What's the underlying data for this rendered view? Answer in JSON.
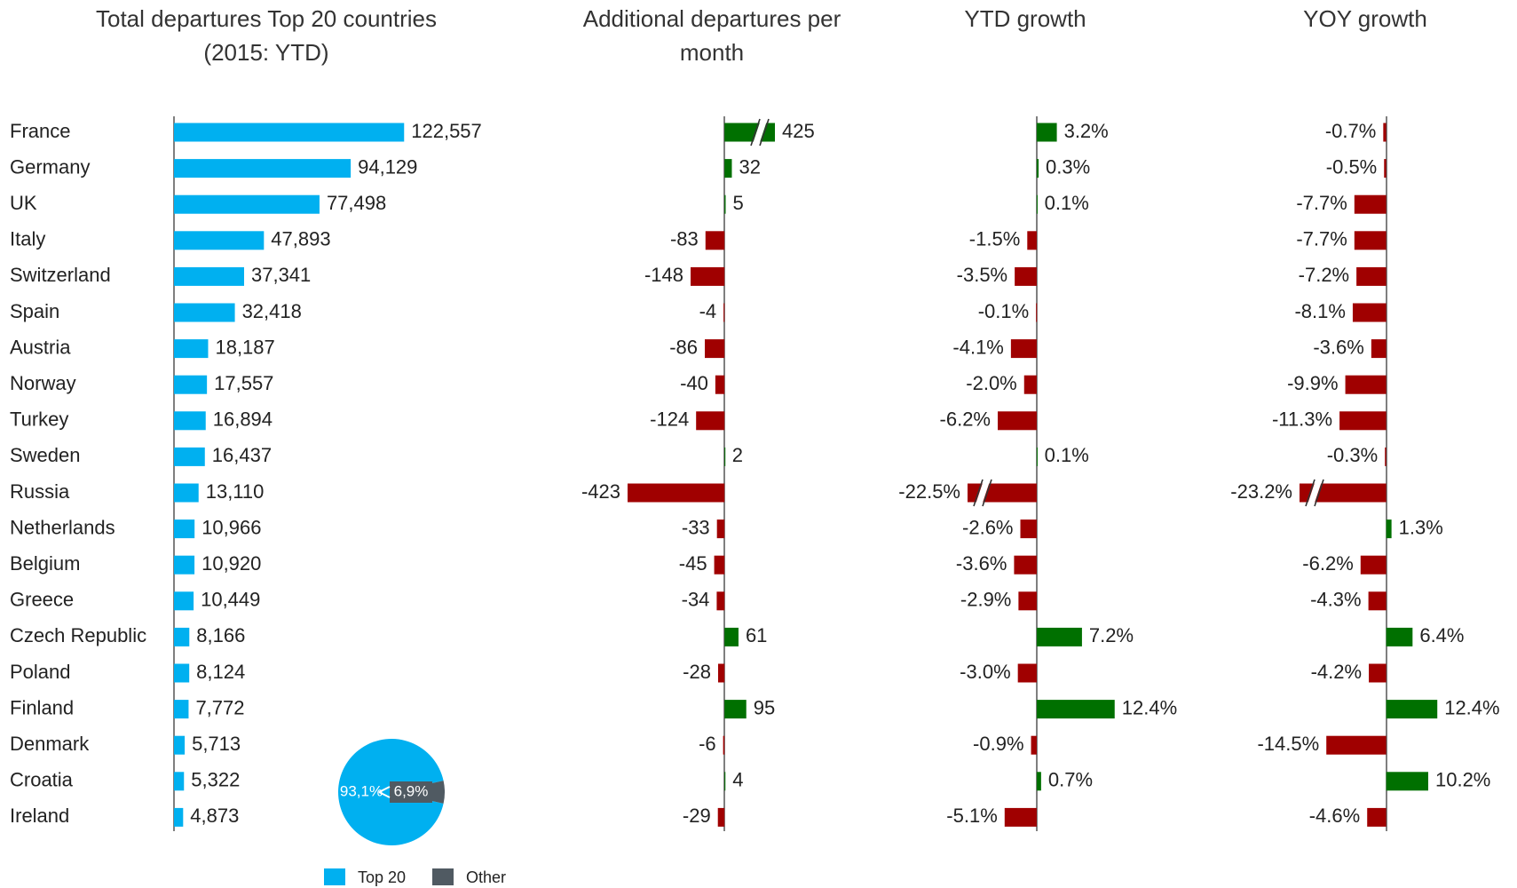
{
  "chart_data": [
    {
      "type": "bar",
      "orientation": "horizontal",
      "title": "Total departures Top 20 countries (2015: YTD)",
      "categories": [
        "France",
        "Germany",
        "UK",
        "Italy",
        "Switzerland",
        "Spain",
        "Austria",
        "Norway",
        "Turkey",
        "Sweden",
        "Russia",
        "Netherlands",
        "Belgium",
        "Greece",
        "Czech Republic",
        "Poland",
        "Finland",
        "Denmark",
        "Croatia",
        "Ireland"
      ],
      "values": [
        122557,
        94129,
        77498,
        47893,
        37341,
        32418,
        18187,
        17557,
        16894,
        16437,
        13110,
        10966,
        10920,
        10449,
        8166,
        8124,
        7772,
        5713,
        5322,
        4873
      ],
      "value_labels": [
        "122,557",
        "94,129",
        "77,498",
        "47,893",
        "37,341",
        "32,418",
        "18,187",
        "17,557",
        "16,894",
        "16,437",
        "13,110",
        "10,966",
        "10,920",
        "10,449",
        "8,166",
        "8,124",
        "7,772",
        "5,713",
        "5,322",
        "4,873"
      ],
      "color": "#00b0f0",
      "xlim": [
        0,
        130000
      ]
    },
    {
      "type": "diverging-bar",
      "title": "Additional departures per month",
      "values": [
        425,
        32,
        5,
        -83,
        -148,
        -4,
        -86,
        -40,
        -124,
        2,
        -423,
        -33,
        -45,
        -34,
        61,
        -28,
        95,
        -6,
        4,
        -29
      ],
      "color_positive": "#007000",
      "color_negative": "#a00000",
      "xlim": [
        -423,
        220
      ]
    },
    {
      "type": "diverging-bar",
      "title": "YTD growth",
      "values": [
        3.2,
        0.3,
        0.1,
        -1.5,
        -3.5,
        -0.1,
        -4.1,
        -2.0,
        -6.2,
        0.1,
        -22.5,
        -2.6,
        -3.6,
        -2.9,
        7.2,
        -3.0,
        12.4,
        -0.9,
        0.7,
        -5.1
      ],
      "value_labels": [
        "3.2%",
        "0.3%",
        "0.1%",
        "-1.5%",
        "-3.5%",
        "-0.1%",
        "-4.1%",
        "-2.0%",
        "-6.2%",
        "0.1%",
        "-22.5%",
        "-2.6%",
        "-3.6%",
        "-2.9%",
        "7.2%",
        "-3.0%",
        "12.4%",
        "-0.9%",
        "0.7%",
        "-5.1%"
      ],
      "color_positive": "#007000",
      "color_negative": "#a00000",
      "xlim": [
        -11,
        13
      ]
    },
    {
      "type": "diverging-bar",
      "title": "YOY growth",
      "values": [
        -0.7,
        -0.5,
        -7.7,
        -7.7,
        -7.2,
        -8.1,
        -3.6,
        -9.9,
        -11.3,
        -0.3,
        -23.2,
        1.3,
        -6.2,
        -4.3,
        6.4,
        -4.2,
        12.4,
        -14.5,
        10.2,
        -4.6
      ],
      "value_labels": [
        "-0.7%",
        "-0.5%",
        "-7.7%",
        "-7.7%",
        "-7.2%",
        "-8.1%",
        "-3.6%",
        "-9.9%",
        "-11.3%",
        "-0.3%",
        "-23.2%",
        "1.3%",
        "-6.2%",
        "-4.3%",
        "6.4%",
        "-4.2%",
        "12.4%",
        "-14.5%",
        "10.2%",
        "-4.6%"
      ],
      "color_positive": "#007000",
      "color_negative": "#a00000",
      "xlim": [
        -21,
        13
      ]
    },
    {
      "type": "pie",
      "categories": [
        "Top 20",
        "Other"
      ],
      "values": [
        93.1,
        6.9
      ],
      "value_labels": [
        "93,1%",
        "6,9%"
      ],
      "colors": [
        "#00b0f0",
        "#505a62"
      ],
      "legend": "bottom"
    }
  ]
}
